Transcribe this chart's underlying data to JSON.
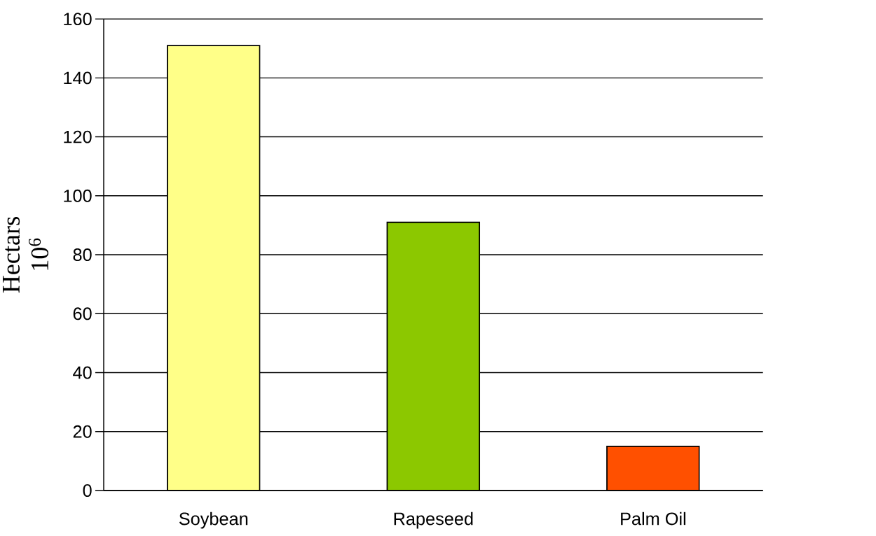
{
  "chart_data": {
    "type": "bar",
    "ylabel": "Hectars 10$^{6}$",
    "categories": [
      "Soybean",
      "Rapeseed",
      "Palm Oil"
    ],
    "values": [
      151,
      91,
      15
    ],
    "colors": [
      "#ffff88",
      "#8cc800",
      "#ff5000"
    ],
    "ylim": [
      0,
      160
    ],
    "yticks": [
      0,
      20,
      40,
      60,
      80,
      100,
      120,
      140,
      160
    ],
    "grid": "y"
  }
}
